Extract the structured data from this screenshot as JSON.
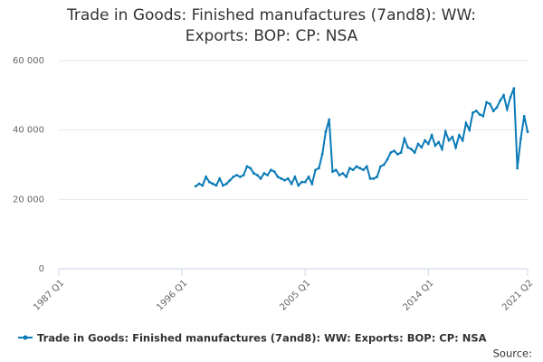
{
  "chart_data": {
    "type": "line",
    "title": "Trade in Goods: Finished manufactures (7and8): WW: Exports: BOP: CP: NSA",
    "source": "Source:",
    "categories": [
      "1987 Q1",
      null,
      null,
      null,
      null,
      null,
      null,
      null,
      null,
      null,
      null,
      null,
      null,
      null,
      null,
      null,
      null,
      null,
      null,
      null,
      null,
      null,
      null,
      null,
      null,
      null,
      null,
      null,
      null,
      null,
      null,
      null,
      null,
      null,
      null,
      null,
      "1996 Q1",
      null,
      null,
      null,
      null,
      null,
      null,
      null,
      null,
      null,
      null,
      null,
      null,
      null,
      null,
      null,
      null,
      null,
      null,
      null,
      null,
      null,
      null,
      null,
      null,
      null,
      null,
      null,
      null,
      null,
      null,
      null,
      null,
      null,
      null,
      null,
      "2005 Q1",
      null,
      null,
      null,
      null,
      null,
      null,
      null,
      null,
      null,
      null,
      null,
      null,
      null,
      null,
      null,
      null,
      null,
      null,
      null,
      null,
      null,
      null,
      null,
      null,
      null,
      null,
      null,
      null,
      null,
      null,
      null,
      null,
      null,
      null,
      null,
      "2014 Q1",
      null,
      null,
      null,
      null,
      null,
      null,
      null,
      null,
      null,
      null,
      null,
      null,
      null,
      null,
      null,
      null,
      null,
      null,
      null,
      null,
      null,
      null,
      null,
      null,
      null,
      null,
      null,
      null,
      "2021 Q2"
    ],
    "series": [
      {
        "name": "Trade in Goods: Finished manufactures (7and8): WW: Exports: BOP: CP: NSA",
        "color": "#0b7bb7",
        "values": [
          null,
          null,
          null,
          null,
          null,
          null,
          null,
          null,
          null,
          null,
          null,
          null,
          null,
          null,
          null,
          null,
          null,
          null,
          null,
          null,
          null,
          null,
          null,
          null,
          null,
          null,
          null,
          null,
          null,
          null,
          null,
          null,
          null,
          null,
          null,
          null,
          null,
          null,
          null,
          null,
          23800,
          24500,
          24000,
          26500,
          25000,
          24500,
          24000,
          26000,
          24000,
          24500,
          25500,
          26500,
          27000,
          26500,
          27000,
          29500,
          29000,
          27500,
          27000,
          26000,
          27500,
          27000,
          28500,
          28000,
          26500,
          26000,
          25500,
          26000,
          24500,
          26500,
          24000,
          25000,
          25000,
          26500,
          24500,
          28500,
          29000,
          33000,
          39500,
          43000,
          28000,
          28500,
          27000,
          27500,
          26500,
          29000,
          28500,
          29500,
          29000,
          28500,
          29500,
          26000,
          26000,
          26500,
          29500,
          30000,
          31500,
          33500,
          34000,
          33000,
          33500,
          37500,
          35000,
          34500,
          33500,
          36000,
          35000,
          37000,
          36000,
          38500,
          35500,
          36500,
          34500,
          39500,
          37000,
          38000,
          35000,
          38500,
          37000,
          42000,
          40000,
          45000,
          45500,
          44500,
          44000,
          48000,
          47500,
          45500,
          46500,
          48500,
          50000,
          46000,
          49500,
          52000,
          29000,
          37500,
          44000,
          39500
        ]
      }
    ],
    "ylim": [
      0,
      60000
    ],
    "yticks": [
      0,
      {
        "value": 20000,
        "label": "20 000"
      },
      {
        "value": 40000,
        "label": "40 000"
      },
      {
        "value": 60000,
        "label": "60 000"
      }
    ],
    "grid": true,
    "legend": "bottom"
  }
}
